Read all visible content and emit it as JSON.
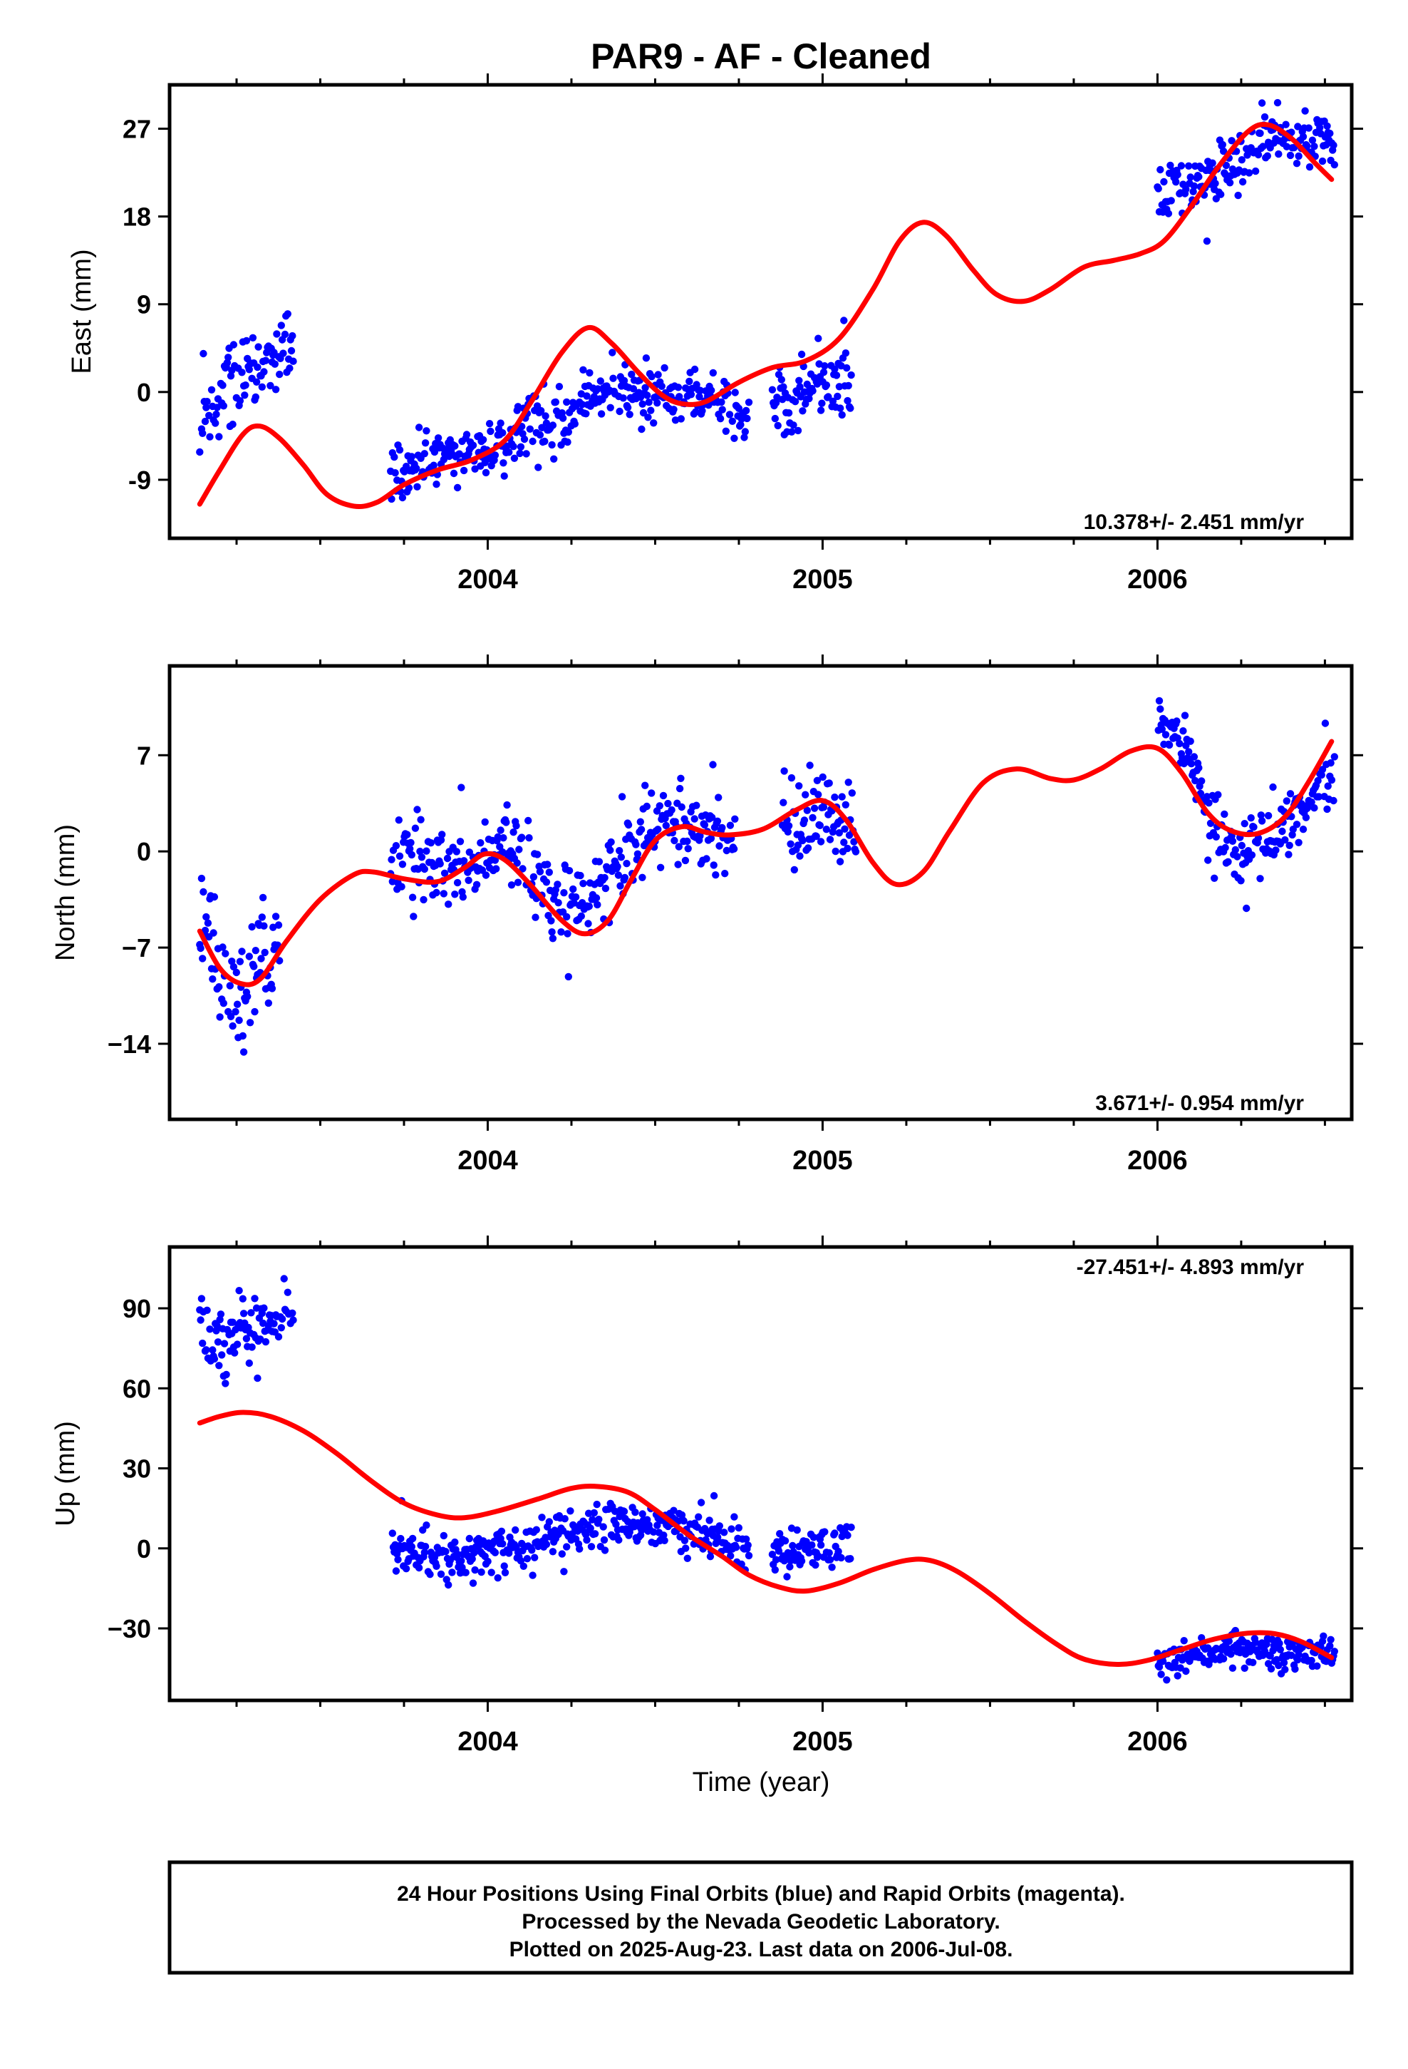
{
  "title": "PAR9  - AF - Cleaned",
  "xlabel": "Time (year)",
  "colors": {
    "final_orbits": "#0000ff",
    "fit": "#ff0000",
    "frame": "#000000"
  },
  "footer": {
    "lines": [
      "24 Hour Positions Using Final Orbits (blue) and Rapid Orbits (magenta).",
      "Processed by the Nevada Geodetic Laboratory.",
      "Plotted on 2025-Aug-23. Last data on 2006-Jul-08."
    ]
  },
  "chart_data": [
    {
      "type": "scatter",
      "ylabel": "East (mm)",
      "rate": "10.378+/- 2.451 mm/yr",
      "xlim": [
        2003.05,
        2006.58
      ],
      "ylim": [
        -15,
        31.5
      ],
      "yticks": [
        -9,
        0,
        9,
        18,
        27
      ],
      "xticks": [
        2004,
        2005,
        2006
      ],
      "x_tick_labels": [
        "2004",
        "2005",
        "2006"
      ],
      "y_tick_labels": [
        "-9",
        "0",
        "9",
        "18",
        "27"
      ],
      "grid": false,
      "data_segments": [
        {
          "start": 2003.14,
          "end": 2003.42,
          "trend": [
            [
              2003.14,
              -1.5
            ],
            [
              2003.25,
              1
            ],
            [
              2003.42,
              4
            ]
          ],
          "scatter": 2.3
        },
        {
          "start": 2003.71,
          "end": 2004.35,
          "trend": [
            [
              2003.71,
              -9
            ],
            [
              2003.85,
              -6.5
            ],
            [
              2004.0,
              -5.5
            ],
            [
              2004.2,
              -3
            ],
            [
              2004.35,
              0
            ]
          ],
          "scatter": 1.5
        },
        {
          "start": 2004.35,
          "end": 2004.78,
          "trend": [
            [
              2004.35,
              0
            ],
            [
              2004.55,
              0
            ],
            [
              2004.78,
              -2
            ]
          ],
          "scatter": 1.5
        },
        {
          "start": 2004.85,
          "end": 2005.09,
          "trend": [
            [
              2004.85,
              0
            ],
            [
              2005.09,
              1
            ]
          ],
          "scatter": 1.8
        },
        {
          "start": 2006.0,
          "end": 2006.53,
          "trend": [
            [
              2006.0,
              20
            ],
            [
              2006.2,
              23
            ],
            [
              2006.35,
              26
            ],
            [
              2006.53,
              26
            ]
          ],
          "scatter": 1.6
        }
      ],
      "fit_curve": [
        [
          2003.14,
          -11.5
        ],
        [
          2003.2,
          -8
        ],
        [
          2003.27,
          -4.3
        ],
        [
          2003.32,
          -3.5
        ],
        [
          2003.38,
          -4.8
        ],
        [
          2003.45,
          -7.5
        ],
        [
          2003.52,
          -10.5
        ],
        [
          2003.6,
          -11.7
        ],
        [
          2003.67,
          -11.3
        ],
        [
          2003.75,
          -9.5
        ],
        [
          2003.85,
          -8
        ],
        [
          2003.95,
          -7
        ],
        [
          2004.05,
          -5
        ],
        [
          2004.13,
          -1
        ],
        [
          2004.22,
          4
        ],
        [
          2004.3,
          6.6
        ],
        [
          2004.37,
          5
        ],
        [
          2004.45,
          2
        ],
        [
          2004.52,
          -0.3
        ],
        [
          2004.58,
          -1.2
        ],
        [
          2004.65,
          -1
        ],
        [
          2004.75,
          1
        ],
        [
          2004.85,
          2.5
        ],
        [
          2004.95,
          3.2
        ],
        [
          2005.05,
          5.5
        ],
        [
          2005.15,
          10.5
        ],
        [
          2005.23,
          15.5
        ],
        [
          2005.3,
          17.4
        ],
        [
          2005.37,
          16
        ],
        [
          2005.45,
          12.5
        ],
        [
          2005.52,
          10
        ],
        [
          2005.6,
          9.3
        ],
        [
          2005.68,
          10.5
        ],
        [
          2005.78,
          12.8
        ],
        [
          2005.87,
          13.5
        ],
        [
          2005.95,
          14.2
        ],
        [
          2006.02,
          15.5
        ],
        [
          2006.1,
          19
        ],
        [
          2006.18,
          23
        ],
        [
          2006.27,
          26.7
        ],
        [
          2006.33,
          27.4
        ],
        [
          2006.4,
          26
        ],
        [
          2006.47,
          23.5
        ],
        [
          2006.52,
          21.8
        ]
      ]
    },
    {
      "type": "scatter",
      "ylabel": "North (mm)",
      "rate": "3.671+/- 0.954 mm/yr",
      "xlim": [
        2003.05,
        2006.58
      ],
      "ylim": [
        -19.5,
        13.5
      ],
      "yticks": [
        -14,
        -7,
        0,
        7
      ],
      "xticks": [
        2004,
        2005,
        2006
      ],
      "x_tick_labels": [
        "2004",
        "2005",
        "2006"
      ],
      "y_tick_labels": [
        "−14",
        "−7",
        "0",
        "7"
      ],
      "grid": false,
      "data_segments": [
        {
          "start": 2003.14,
          "end": 2003.38,
          "trend": [
            [
              2003.14,
              -6
            ],
            [
              2003.24,
              -11
            ],
            [
              2003.3,
              -10
            ],
            [
              2003.38,
              -6.5
            ]
          ],
          "scatter": 2.0
        },
        {
          "start": 2003.71,
          "end": 2004.3,
          "trend": [
            [
              2003.71,
              -0.5
            ],
            [
              2003.85,
              -1
            ],
            [
              2003.95,
              -1.5
            ],
            [
              2004.05,
              0.5
            ],
            [
              2004.15,
              -2
            ],
            [
              2004.22,
              -4
            ],
            [
              2004.3,
              -3
            ]
          ],
          "scatter": 1.5
        },
        {
          "start": 2004.3,
          "end": 2004.74,
          "trend": [
            [
              2004.3,
              -3
            ],
            [
              2004.42,
              0
            ],
            [
              2004.55,
              2.5
            ],
            [
              2004.74,
              0.5
            ]
          ],
          "scatter": 1.5
        },
        {
          "start": 2004.88,
          "end": 2005.1,
          "trend": [
            [
              2004.88,
              2
            ],
            [
              2005.0,
              3
            ],
            [
              2005.1,
              1
            ]
          ],
          "scatter": 1.7
        },
        {
          "start": 2006.0,
          "end": 2006.53,
          "trend": [
            [
              2006.0,
              10
            ],
            [
              2006.08,
              8
            ],
            [
              2006.15,
              2
            ],
            [
              2006.25,
              0
            ],
            [
              2006.35,
              1
            ],
            [
              2006.45,
              3
            ],
            [
              2006.53,
              6
            ]
          ],
          "scatter": 1.2
        }
      ],
      "fit_curve": [
        [
          2003.14,
          -5.8
        ],
        [
          2003.2,
          -8.5
        ],
        [
          2003.26,
          -9.6
        ],
        [
          2003.32,
          -9.3
        ],
        [
          2003.4,
          -6.5
        ],
        [
          2003.5,
          -3.5
        ],
        [
          2003.6,
          -1.7
        ],
        [
          2003.66,
          -1.5
        ],
        [
          2003.75,
          -2
        ],
        [
          2003.85,
          -2.2
        ],
        [
          2003.93,
          -1.2
        ],
        [
          2003.99,
          -0.2
        ],
        [
          2004.05,
          -0.6
        ],
        [
          2004.13,
          -2.5
        ],
        [
          2004.22,
          -5
        ],
        [
          2004.29,
          -6
        ],
        [
          2004.36,
          -5
        ],
        [
          2004.43,
          -2
        ],
        [
          2004.5,
          0.8
        ],
        [
          2004.58,
          1.8
        ],
        [
          2004.65,
          1.4
        ],
        [
          2004.72,
          1.2
        ],
        [
          2004.82,
          1.6
        ],
        [
          2004.92,
          3
        ],
        [
          2005.0,
          3.7
        ],
        [
          2005.07,
          2.3
        ],
        [
          2005.15,
          -0.8
        ],
        [
          2005.22,
          -2.4
        ],
        [
          2005.3,
          -1.5
        ],
        [
          2005.38,
          1.5
        ],
        [
          2005.48,
          5
        ],
        [
          2005.58,
          6
        ],
        [
          2005.68,
          5.3
        ],
        [
          2005.75,
          5.2
        ],
        [
          2005.83,
          6
        ],
        [
          2005.92,
          7.3
        ],
        [
          2006.0,
          7.5
        ],
        [
          2006.07,
          5.8
        ],
        [
          2006.15,
          2.8
        ],
        [
          2006.22,
          1.5
        ],
        [
          2006.3,
          1.3
        ],
        [
          2006.38,
          2.5
        ],
        [
          2006.45,
          5
        ],
        [
          2006.52,
          8
        ]
      ]
    },
    {
      "type": "scatter",
      "ylabel": "Up (mm)",
      "rate": "-27.451+/- 4.893 mm/yr",
      "xlim": [
        2003.05,
        2006.58
      ],
      "ylim": [
        -57,
        113
      ],
      "yticks": [
        -30,
        0,
        30,
        60,
        90
      ],
      "xticks": [
        2004,
        2005,
        2006
      ],
      "x_tick_labels": [
        "2004",
        "2005",
        "2006"
      ],
      "y_tick_labels": [
        "−30",
        "0",
        "30",
        "60",
        "90"
      ],
      "grid": false,
      "data_segments": [
        {
          "start": 2003.14,
          "end": 2003.42,
          "trend": [
            [
              2003.14,
              78
            ],
            [
              2003.28,
              82
            ],
            [
              2003.42,
              86
            ]
          ],
          "scatter": 6
        },
        {
          "start": 2003.71,
          "end": 2004.35,
          "trend": [
            [
              2003.71,
              0
            ],
            [
              2003.9,
              -4
            ],
            [
              2004.05,
              0
            ],
            [
              2004.2,
              5
            ],
            [
              2004.35,
              8
            ]
          ],
          "scatter": 4
        },
        {
          "start": 2004.35,
          "end": 2004.78,
          "trend": [
            [
              2004.35,
              10
            ],
            [
              2004.55,
              8
            ],
            [
              2004.78,
              0
            ]
          ],
          "scatter": 4
        },
        {
          "start": 2004.85,
          "end": 2005.09,
          "trend": [
            [
              2004.85,
              -3
            ],
            [
              2005.09,
              2
            ]
          ],
          "scatter": 4
        },
        {
          "start": 2006.0,
          "end": 2006.53,
          "trend": [
            [
              2006.0,
              -42
            ],
            [
              2006.25,
              -38
            ],
            [
              2006.53,
              -40
            ]
          ],
          "scatter": 3
        }
      ],
      "fit_curve": [
        [
          2003.14,
          47
        ],
        [
          2003.2,
          49.5
        ],
        [
          2003.27,
          51
        ],
        [
          2003.35,
          49.5
        ],
        [
          2003.45,
          44
        ],
        [
          2003.55,
          35.5
        ],
        [
          2003.65,
          25.5
        ],
        [
          2003.75,
          17
        ],
        [
          2003.85,
          12.5
        ],
        [
          2003.93,
          11.5
        ],
        [
          2004.03,
          14
        ],
        [
          2004.15,
          18.5
        ],
        [
          2004.25,
          22.5
        ],
        [
          2004.33,
          23.2
        ],
        [
          2004.42,
          21
        ],
        [
          2004.5,
          14.5
        ],
        [
          2004.6,
          5
        ],
        [
          2004.7,
          -3
        ],
        [
          2004.78,
          -10
        ],
        [
          2004.87,
          -14.5
        ],
        [
          2004.95,
          -16
        ],
        [
          2005.05,
          -13
        ],
        [
          2005.15,
          -8
        ],
        [
          2005.25,
          -4.5
        ],
        [
          2005.32,
          -4.5
        ],
        [
          2005.4,
          -8.5
        ],
        [
          2005.5,
          -17
        ],
        [
          2005.6,
          -27
        ],
        [
          2005.7,
          -36
        ],
        [
          2005.78,
          -41.5
        ],
        [
          2005.88,
          -43.5
        ],
        [
          2005.97,
          -42
        ],
        [
          2006.07,
          -38
        ],
        [
          2006.17,
          -34
        ],
        [
          2006.27,
          -31.8
        ],
        [
          2006.35,
          -32
        ],
        [
          2006.43,
          -35
        ],
        [
          2006.52,
          -41
        ]
      ]
    }
  ]
}
